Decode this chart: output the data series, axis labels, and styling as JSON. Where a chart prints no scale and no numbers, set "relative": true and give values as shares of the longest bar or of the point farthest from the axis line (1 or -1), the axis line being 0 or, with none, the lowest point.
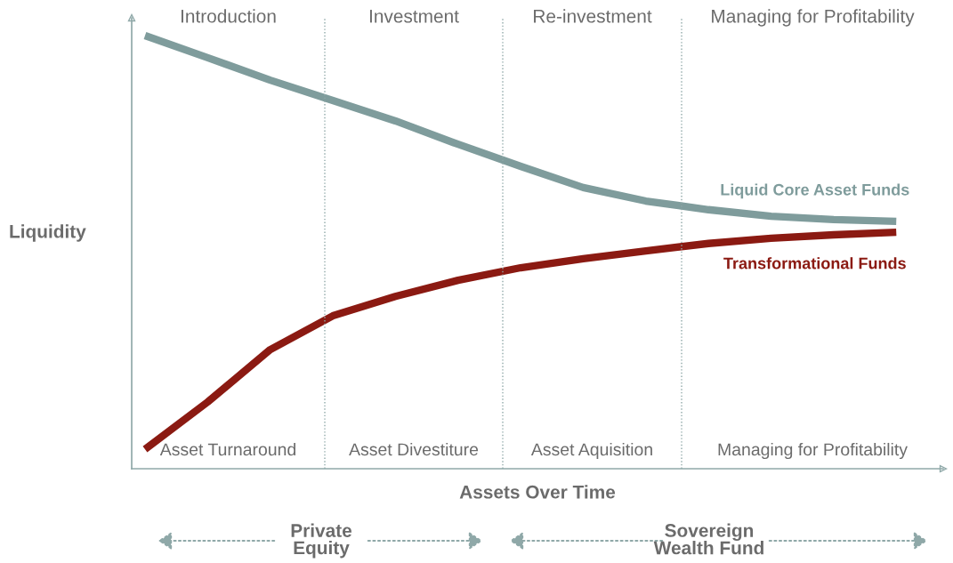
{
  "chart_data": {
    "type": "line",
    "relative": true,
    "xlabel": "Assets Over Time",
    "ylabel": "Liquidity",
    "categories": [
      null,
      null,
      null,
      null,
      null,
      null,
      null,
      null,
      null,
      null,
      null,
      null,
      null
    ],
    "series": [
      {
        "name": "Liquid Core Asset Funds",
        "color": "#7f9c9c",
        "values": [
          1,
          0.949,
          0.897,
          0.85,
          0.803,
          0.749,
          0.698,
          0.649,
          0.618,
          0.598,
          0.583,
          0.575,
          0.571
        ]
      },
      {
        "name": "Transformational Funds",
        "color": "#8b1a12",
        "values": [
          0.045,
          0.154,
          0.275,
          0.353,
          0.398,
          0.435,
          0.464,
          0.485,
          0.503,
          0.52,
          0.532,
          0.54,
          0.546
        ]
      }
    ],
    "annotations": [
      "Introduction",
      "Investment",
      "Re-investment",
      "Managing for Profitability",
      "Asset Turnaround",
      "Asset Divestiture",
      "Asset Aquisition",
      "Managing for Profitability",
      "Private\nEquity",
      "Sovereign\nWealth Fund"
    ],
    "grid": false,
    "legend": false,
    "marker": "none",
    "line_style": "solid"
  }
}
